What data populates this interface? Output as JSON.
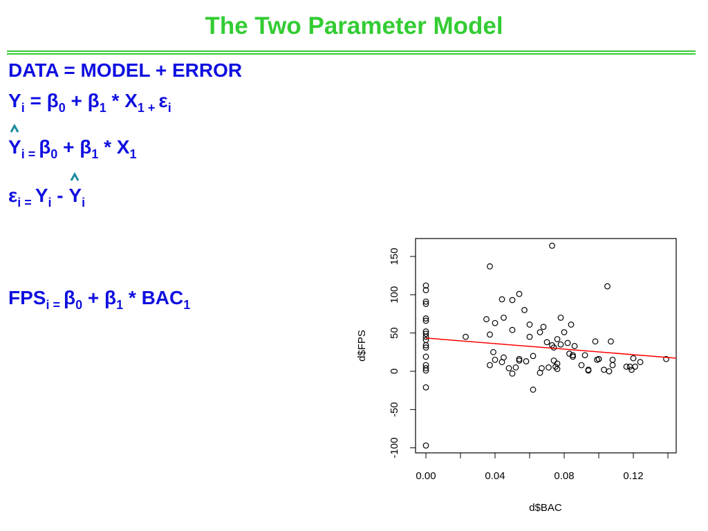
{
  "title": "The Two Parameter Model",
  "equations": [
    [
      {
        "text": "DATA = MODEL + ERROR",
        "sub": false,
        "hat": false
      }
    ],
    [
      {
        "text": "Y",
        "sub": false,
        "hat": false
      },
      {
        "text": "i",
        "sub": true,
        "hat": false
      },
      {
        "text": " = β",
        "sub": false,
        "hat": false
      },
      {
        "text": "0",
        "sub": true,
        "hat": false
      },
      {
        "text": " + β",
        "sub": false,
        "hat": false
      },
      {
        "text": "1",
        "sub": true,
        "hat": false
      },
      {
        "text": " * X",
        "sub": false,
        "hat": false
      },
      {
        "text": "1 + ",
        "sub": true,
        "hat": false
      },
      {
        "text": "ε",
        "sub": false,
        "hat": false
      },
      {
        "text": "i",
        "sub": true,
        "hat": false
      }
    ],
    [
      {
        "text": "Y",
        "sub": false,
        "hat": true
      },
      {
        "text": "i = ",
        "sub": true,
        "hat": false
      },
      {
        "text": "β",
        "sub": false,
        "hat": false
      },
      {
        "text": "0",
        "sub": true,
        "hat": false
      },
      {
        "text": " + β",
        "sub": false,
        "hat": false
      },
      {
        "text": "1",
        "sub": true,
        "hat": false
      },
      {
        "text": " * X",
        "sub": false,
        "hat": false
      },
      {
        "text": "1",
        "sub": true,
        "hat": false
      }
    ],
    [
      {
        "text": "ε",
        "sub": false,
        "hat": false
      },
      {
        "text": "i = ",
        "sub": true,
        "hat": false
      },
      {
        "text": "Y",
        "sub": false,
        "hat": false
      },
      {
        "text": "i",
        "sub": true,
        "hat": false
      },
      {
        "text": " - ",
        "sub": false,
        "hat": false
      },
      {
        "text": "Y",
        "sub": false,
        "hat": true
      },
      {
        "text": "i",
        "sub": true,
        "hat": false
      }
    ],
    [
      {
        "text": "FPS",
        "sub": false,
        "hat": false
      },
      {
        "text": "i = ",
        "sub": true,
        "hat": false
      },
      {
        "text": "β",
        "sub": false,
        "hat": false
      },
      {
        "text": "0",
        "sub": true,
        "hat": false
      },
      {
        "text": " + β",
        "sub": false,
        "hat": false
      },
      {
        "text": "1",
        "sub": true,
        "hat": false
      },
      {
        "text": " * BAC",
        "sub": false,
        "hat": false
      },
      {
        "text": "1",
        "sub": true,
        "hat": false
      }
    ]
  ],
  "chart_data": {
    "type": "scatter",
    "x_label": "d$BAC",
    "y_label": "d$FPS",
    "x": [
      0,
      0,
      0,
      0,
      0,
      0,
      0,
      0,
      0,
      0,
      0,
      0,
      0,
      0,
      0,
      0,
      0,
      0,
      0.023,
      0.035,
      0.037,
      0.037,
      0.037,
      0.039,
      0.04,
      0.04,
      0.044,
      0.044,
      0.045,
      0.045,
      0.048,
      0.05,
      0.05,
      0.05,
      0.052,
      0.054,
      0.054,
      0.054,
      0.057,
      0.058,
      0.06,
      0.06,
      0.062,
      0.062,
      0.066,
      0.066,
      0.067,
      0.068,
      0.07,
      0.071,
      0.073,
      0.073,
      0.074,
      0.074,
      0.075,
      0.076,
      0.076,
      0.076,
      0.078,
      0.078,
      0.08,
      0.082,
      0.083,
      0.084,
      0.085,
      0.085,
      0.086,
      0.09,
      0.092,
      0.094,
      0.094,
      0.098,
      0.099,
      0.1,
      0.1,
      0.103,
      0.105,
      0.106,
      0.107,
      0.108,
      0.108,
      0.116,
      0.118,
      0.119,
      0.12,
      0.121,
      0.124,
      0.139
    ],
    "y": [
      112,
      106,
      91,
      88,
      69,
      66,
      52,
      49,
      45,
      41,
      34,
      31,
      19,
      8,
      4,
      1,
      -21,
      -97,
      45,
      68,
      48,
      137,
      8,
      25,
      63,
      15,
      94,
      12,
      70,
      18,
      4,
      54,
      93,
      -3,
      5,
      101,
      16,
      14,
      80,
      13,
      61,
      45,
      20,
      -24,
      -2,
      51,
      4,
      58,
      38,
      5,
      164,
      34,
      14,
      31,
      6,
      3,
      10,
      42,
      35,
      70,
      51,
      37,
      23,
      61,
      19,
      21,
      33,
      8,
      21,
      2,
      1,
      39,
      15,
      16,
      16,
      2,
      111,
      0,
      39,
      15,
      8,
      6,
      6,
      2,
      17,
      6,
      12,
      16
    ],
    "fit": {
      "intercept": 43.4,
      "slope": -181,
      "color": "#ff0000"
    },
    "xlim": [
      -0.006,
      0.1448
    ],
    "ylim": [
      -106.6,
      173.4
    ],
    "xticks": [
      {
        "value": 0,
        "label": "0.00"
      },
      {
        "value": 0.04,
        "label": "0.04"
      },
      {
        "value": 0.08,
        "label": "0.08"
      },
      {
        "value": 0.12,
        "label": "0.12"
      }
    ],
    "xminor_ticks": [
      0.02,
      0.06,
      0.1,
      0.14
    ],
    "yticks": [
      -100,
      -50,
      0,
      50,
      100,
      150
    ]
  }
}
